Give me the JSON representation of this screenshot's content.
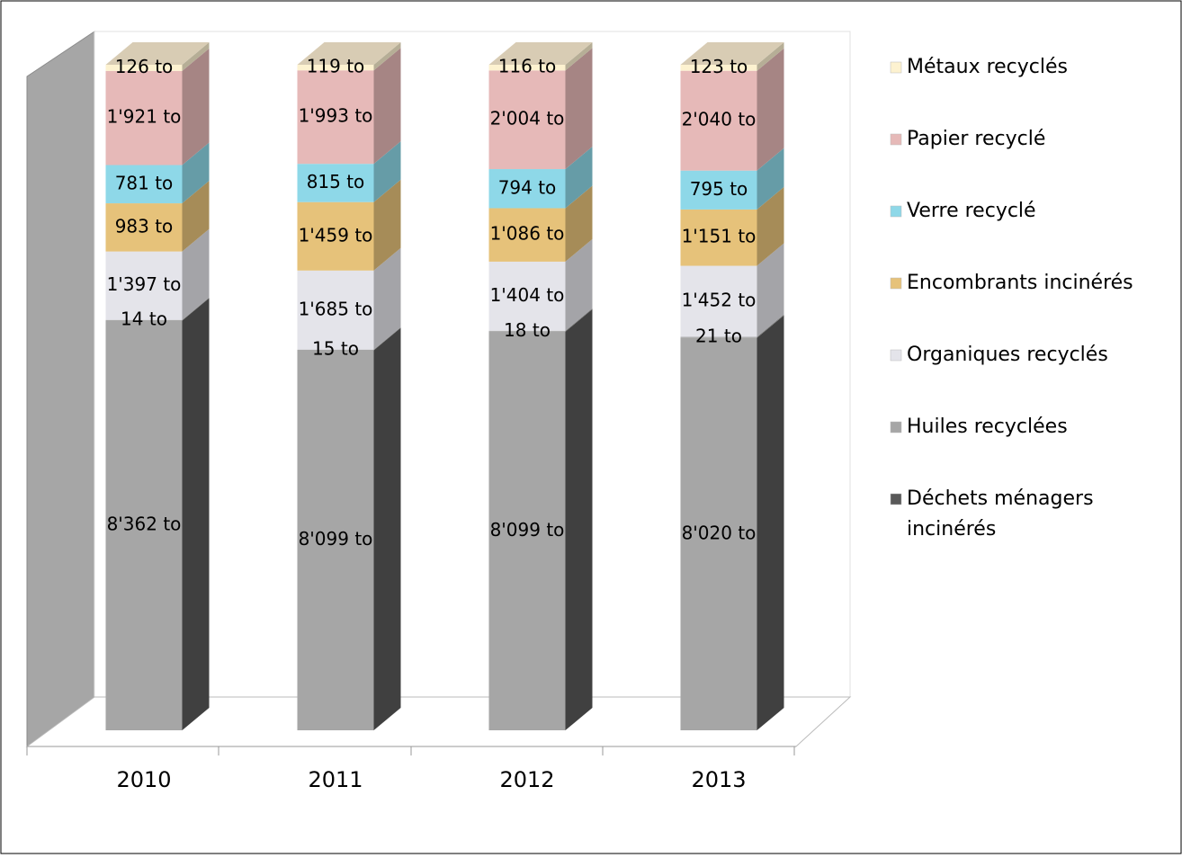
{
  "chart_data": {
    "type": "bar",
    "stacking": "percent",
    "categories": [
      "2010",
      "2011",
      "2012",
      "2013"
    ],
    "series": [
      {
        "name": "Déchets ménagers incinérés",
        "color": "#595959",
        "values": [
          8362,
          8099,
          8099,
          8020
        ],
        "value_labels": [
          "8'362 to",
          "8'099 to",
          "8'099 to",
          "8'020 to"
        ]
      },
      {
        "name": "Huiles recyclées",
        "color": "#a6a6a6",
        "values": [
          14,
          15,
          18,
          21
        ],
        "value_labels": [
          "14 to",
          "15 to",
          "18 to",
          "21 to"
        ]
      },
      {
        "name": "Organiques recyclés",
        "color": "#e4e4ea",
        "values": [
          1397,
          1685,
          1404,
          1452
        ],
        "value_labels": [
          "1'397 to",
          "1'685 to",
          "1'404 to",
          "1'452 to"
        ]
      },
      {
        "name": "Encombrants incinérés",
        "color": "#e6c27a",
        "values": [
          983,
          1459,
          1086,
          1151
        ],
        "value_labels": [
          "983 to",
          "1'459 to",
          "1'086 to",
          "1'151 to"
        ]
      },
      {
        "name": "Verre recyclé",
        "color": "#8ed8e8",
        "values": [
          781,
          815,
          794,
          795
        ],
        "value_labels": [
          "781 to",
          "815 to",
          "794 to",
          "795 to"
        ]
      },
      {
        "name": "Papier recyclé",
        "color": "#e6b9b8",
        "values": [
          1921,
          1993,
          2004,
          2040
        ],
        "value_labels": [
          "1'921 to",
          "1'993 to",
          "2'004 to",
          "2'040 to"
        ]
      },
      {
        "name": "Métaux recyclés",
        "color": "#fdf2d0",
        "values": [
          126,
          119,
          116,
          123
        ],
        "value_labels": [
          "126 to",
          "119 to",
          "116 to",
          "123 to"
        ]
      }
    ]
  }
}
